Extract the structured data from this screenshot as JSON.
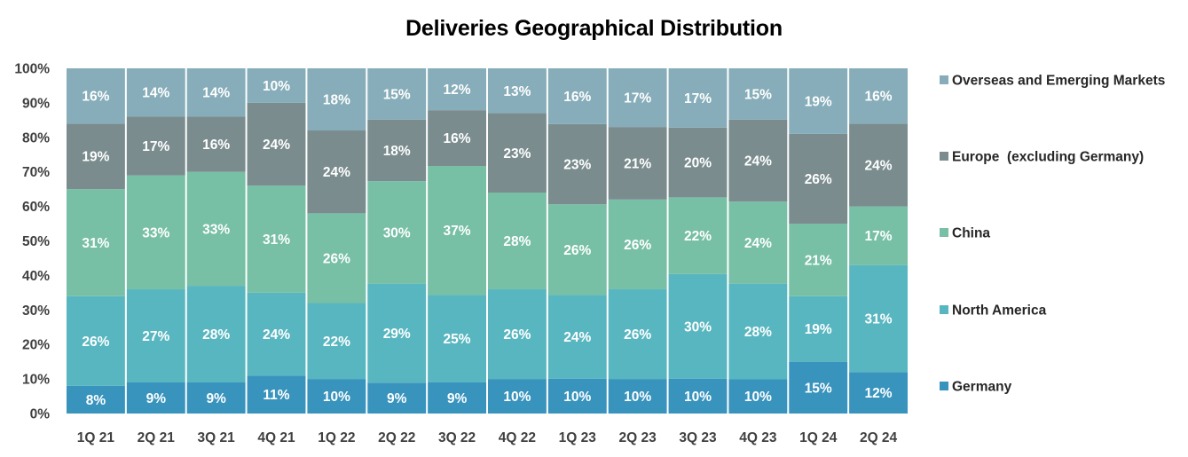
{
  "chart_data": {
    "type": "bar",
    "stacked": true,
    "title": "Deliveries Geographical Distribution",
    "categories": [
      "1Q 21",
      "2Q 21",
      "3Q 21",
      "4Q 21",
      "1Q 22",
      "2Q 22",
      "3Q 22",
      "4Q 22",
      "1Q 23",
      "2Q 23",
      "3Q 23",
      "4Q 23",
      "1Q 24",
      "2Q 24"
    ],
    "y_ticks": [
      "0%",
      "10%",
      "20%",
      "30%",
      "40%",
      "50%",
      "60%",
      "70%",
      "80%",
      "90%",
      "100%"
    ],
    "ylim": [
      0,
      100
    ],
    "grid": false,
    "legend_position": "right",
    "series": [
      {
        "name": "Germany",
        "color": "#3893bd",
        "values": [
          8,
          9,
          9,
          11,
          10,
          9,
          9,
          10,
          10,
          10,
          10,
          10,
          15,
          12
        ],
        "labels": [
          "8%",
          "9%",
          "9%",
          "11%",
          "10%",
          "9%",
          "9%",
          "10%",
          "10%",
          "10%",
          "10%",
          "10%",
          "15%",
          "12%"
        ]
      },
      {
        "name": "North America",
        "color": "#58b6c0",
        "values": [
          26,
          27,
          28,
          24,
          22,
          29,
          25,
          26,
          24,
          26,
          30,
          28,
          19,
          31
        ],
        "labels": [
          "26%",
          "27%",
          "28%",
          "24%",
          "22%",
          "29%",
          "25%",
          "26%",
          "24%",
          "26%",
          "30%",
          "28%",
          "19%",
          "31%"
        ]
      },
      {
        "name": "China",
        "color": "#77bfa5",
        "values": [
          31,
          33,
          33,
          31,
          26,
          30,
          37,
          28,
          26,
          26,
          22,
          24,
          21,
          17
        ],
        "labels": [
          "31%",
          "33%",
          "33%",
          "31%",
          "26%",
          "30%",
          "37%",
          "28%",
          "26%",
          "26%",
          "22%",
          "24%",
          "21%",
          "17%"
        ]
      },
      {
        "name": "Europe  (excluding Germany)",
        "color": "#7a8c8e",
        "values": [
          19,
          17,
          16,
          24,
          24,
          18,
          16,
          23,
          23,
          21,
          20,
          24,
          26,
          24
        ],
        "labels": [
          "19%",
          "17%",
          "16%",
          "24%",
          "24%",
          "18%",
          "16%",
          "23%",
          "23%",
          "21%",
          "20%",
          "24%",
          "26%",
          "24%"
        ]
      },
      {
        "name": "Overseas and Emerging Markets",
        "color": "#86adb9",
        "values": [
          16,
          14,
          14,
          10,
          18,
          15,
          12,
          13,
          16,
          17,
          17,
          15,
          19,
          16
        ],
        "labels": [
          "16%",
          "14%",
          "14%",
          "10%",
          "18%",
          "15%",
          "12%",
          "13%",
          "16%",
          "17%",
          "17%",
          "15%",
          "19%",
          "16%"
        ]
      }
    ]
  }
}
